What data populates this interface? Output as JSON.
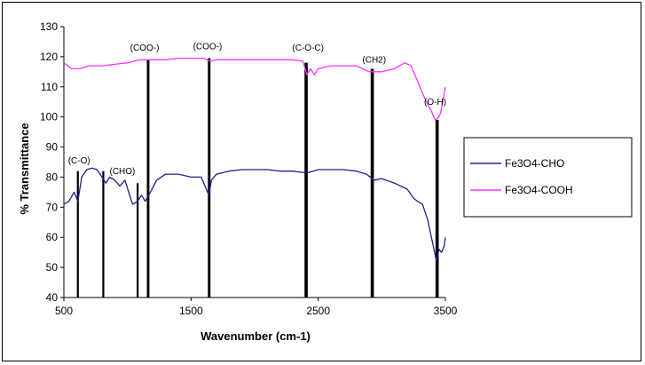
{
  "chart_data": {
    "type": "line",
    "title": "",
    "xlabel": "Wavenumber (cm-1)",
    "ylabel": "% Transmittance",
    "xlim": [
      500,
      3500
    ],
    "ylim": [
      40,
      130
    ],
    "x_ticks": [
      "500",
      "1500",
      "2500",
      "3500"
    ],
    "y_ticks": [
      "40",
      "50",
      "60",
      "70",
      "80",
      "90",
      "100",
      "110",
      "120",
      "130"
    ],
    "grid": false,
    "legend_position": "right",
    "colors": {
      "Fe3O4-CHO": "#1f1f8f",
      "Fe3O4-COOH": "#ff33ff",
      "markers": "#000000"
    },
    "series": [
      {
        "name": "Fe3O4-CHO",
        "x": [
          500,
          540,
          580,
          610,
          640,
          680,
          720,
          760,
          800,
          830,
          860,
          900,
          940,
          980,
          1010,
          1040,
          1080,
          1110,
          1140,
          1180,
          1230,
          1300,
          1400,
          1500,
          1580,
          1620,
          1640,
          1660,
          1700,
          1800,
          1900,
          2000,
          2100,
          2200,
          2300,
          2390,
          2420,
          2500,
          2600,
          2700,
          2800,
          2880,
          2940,
          3000,
          3100,
          3200,
          3250,
          3280,
          3320,
          3360,
          3400,
          3430,
          3450,
          3470,
          3490,
          3500
        ],
        "y": [
          71,
          72,
          75,
          72,
          80,
          82.5,
          83,
          82.5,
          80,
          78,
          80,
          79,
          77,
          79,
          75,
          71,
          72,
          74,
          72,
          75,
          79,
          81,
          81,
          80,
          80,
          76,
          74,
          79,
          81,
          82,
          82.5,
          82.5,
          82.5,
          82,
          82,
          81.5,
          81.5,
          82.5,
          82.5,
          82.5,
          82,
          81,
          79,
          79.5,
          78,
          76,
          73,
          72,
          71,
          66,
          58,
          52,
          56,
          55,
          57,
          60
        ]
      },
      {
        "name": "Fe3O4-COOH",
        "x": [
          500,
          560,
          620,
          700,
          800,
          900,
          1000,
          1100,
          1150,
          1200,
          1300,
          1400,
          1500,
          1600,
          1650,
          1700,
          1800,
          1900,
          2000,
          2100,
          2200,
          2300,
          2380,
          2410,
          2440,
          2470,
          2500,
          2600,
          2700,
          2800,
          2900,
          2950,
          3000,
          3100,
          3180,
          3230,
          3280,
          3320,
          3350,
          3390,
          3420,
          3440,
          3460,
          3480,
          3500
        ],
        "y": [
          118,
          116,
          116,
          117,
          117,
          117.5,
          118,
          119,
          119,
          119,
          119,
          119.5,
          119.5,
          119.5,
          118.5,
          119,
          119,
          119,
          119,
          119,
          119,
          119,
          118.5,
          114,
          116,
          114,
          116,
          117,
          117,
          117,
          115,
          115,
          115,
          116,
          118,
          117,
          112,
          108,
          105,
          102,
          99,
          99.5,
          101,
          105,
          110
        ]
      }
    ],
    "annotations": [
      {
        "label": "(C-O)",
        "text_x": 620,
        "text_y": 84.5,
        "line_x": [
          610,
          810
        ],
        "line_top": 82
      },
      {
        "label": "(CHO)",
        "text_x": 960,
        "text_y": 81,
        "line_x": [
          1080
        ],
        "line_top": 78
      },
      {
        "label": "(COO-)",
        "text_x": 1135,
        "text_y": 122,
        "line_x": [
          1160,
          1165
        ],
        "line_top": 119
      },
      {
        "label": "(COO-)",
        "text_x": 1630,
        "text_y": 122.5,
        "line_x": [
          1640,
          1645
        ],
        "line_top": 119.5
      },
      {
        "label": "(C-O-C)",
        "text_x": 2420,
        "text_y": 122,
        "line_x": [
          2400,
          2410
        ],
        "line_top": 118
      },
      {
        "label": "(CH2)",
        "text_x": 2940,
        "text_y": 118,
        "line_x": [
          2920,
          2930
        ],
        "line_top": 116
      },
      {
        "label": "(O-H)",
        "text_x": 3420,
        "text_y": 104,
        "line_x": [
          3430,
          3440
        ],
        "line_top": 99
      }
    ]
  }
}
